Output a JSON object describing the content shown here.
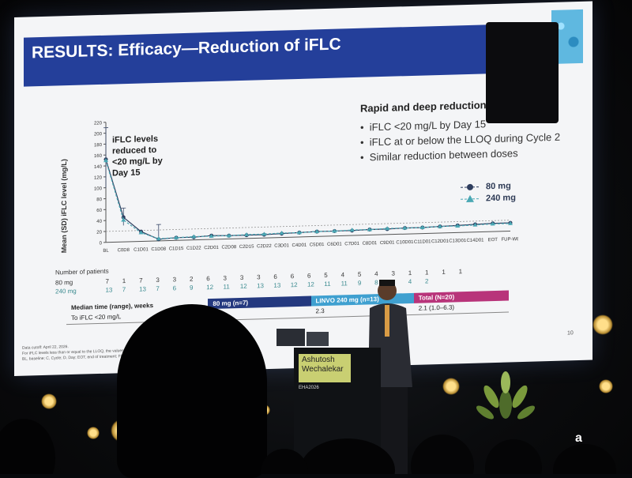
{
  "slide": {
    "title": "RESULTS: Efficacy—Reduction of iFLC",
    "y_axis_label": "Mean (SD) iFLC level (mg/L)",
    "annotation": "iFLC levels reduced to <20 mg/L by Day 15",
    "key_points_title": "Rapid and deep reduction of",
    "bullets": [
      "iFLC <20 mg/L by Day 15",
      "iFLC at or below the LLOQ during Cycle 2",
      "Similar reduction between doses"
    ],
    "legend": [
      {
        "label": "80 mg",
        "color": "#2e3d5e",
        "marker": "circle"
      },
      {
        "label": "240 mg",
        "color": "#4aa8b4",
        "marker": "triangle"
      }
    ],
    "patients_header": "Number of patients",
    "patients_80_label": "80 mg",
    "patients_240_label": "240 mg",
    "patients_80": [
      "7",
      "1",
      "7",
      "3",
      "3",
      "2",
      "6",
      "3",
      "3",
      "3",
      "6",
      "6",
      "6",
      "5",
      "4",
      "5",
      "4",
      "3",
      "1",
      "1",
      "1",
      "1"
    ],
    "patients_240": [
      "13",
      "7",
      "13",
      "7",
      "6",
      "9",
      "12",
      "11",
      "12",
      "13",
      "13",
      "12",
      "12",
      "11",
      "11",
      "9",
      "8",
      "6",
      "4",
      "2",
      "",
      ""
    ],
    "table": {
      "header": [
        "Median time (range), weeks",
        "80 mg (n=7)",
        "LINVO 240 mg (n=13)",
        "Total (N=20)"
      ],
      "row_label": "To iFLC <20 mg/L",
      "row_values": [
        "",
        "2.3",
        "2.1 (1.0–6.3)"
      ]
    },
    "footnote_1": "Data cutoff: April 22, 2026.",
    "footnote_2": "For iFLC levels less than or equal to the LLOQ, the values ...",
    "footnote_3": "BL, baseline; C, Cycle; D, Day; EOT, end of treatment; FUP...",
    "page_number": "10",
    "colors": {
      "banner": "#243f9a",
      "accent_teal": "#3fa0d0",
      "accent_pink": "#b8347a"
    }
  },
  "presenter": {
    "name_line1": "Ashutosh",
    "name_line2": "Wechalekar",
    "plate_logo": "EHA2026"
  },
  "brand_fragment": "a",
  "chart_data": {
    "type": "line",
    "x": [
      "BL",
      "C0D8",
      "C1D01",
      "C1D08",
      "C1D15",
      "C1D22",
      "C2D01",
      "C2D08",
      "C2D15",
      "C2D22",
      "C3D01",
      "C4D01",
      "C5D01",
      "C6D01",
      "C7D01",
      "C8D01",
      "C9D01",
      "C10D01",
      "C11D01",
      "C12D01",
      "C13D01",
      "C14D01",
      "EOT",
      "FUP-W8"
    ],
    "ylim": [
      0,
      220
    ],
    "yticks": [
      0,
      20,
      40,
      60,
      80,
      100,
      120,
      140,
      160,
      180,
      200,
      220
    ],
    "series": [
      {
        "name": "80 mg",
        "values": [
          152,
          45,
          18,
          3,
          5,
          5,
          7,
          6,
          6,
          6,
          7,
          8,
          9,
          9,
          9,
          10,
          10,
          11,
          11,
          12,
          13,
          14,
          15,
          15
        ]
      },
      {
        "name": "240 mg",
        "values": [
          150,
          40,
          16,
          4,
          5,
          6,
          6,
          6,
          7,
          7,
          8,
          8,
          9,
          9,
          10,
          10,
          11,
          11,
          11,
          12,
          12,
          13,
          14,
          14
        ]
      }
    ],
    "reference_line": 20
  }
}
